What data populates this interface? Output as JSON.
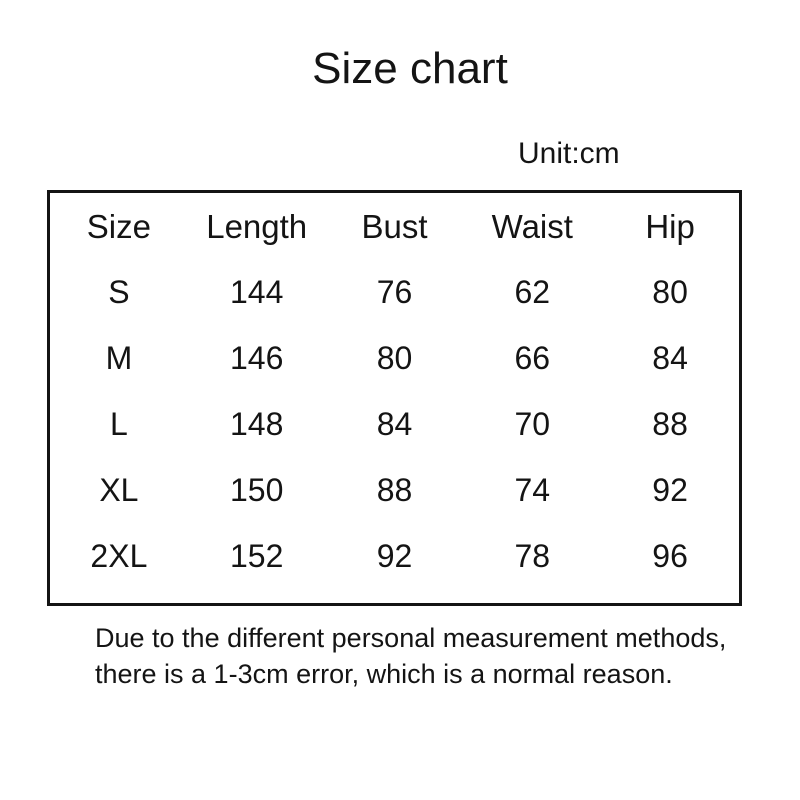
{
  "page": {
    "title": "Size chart",
    "unit_label": "Unit:cm"
  },
  "table": {
    "columns": [
      "Size",
      "Length",
      "Bust",
      "Waist",
      "Hip"
    ],
    "rows": [
      [
        "S",
        "144",
        "76",
        "62",
        "80"
      ],
      [
        "M",
        "146",
        "80",
        "66",
        "84"
      ],
      [
        "L",
        "148",
        "84",
        "70",
        "88"
      ],
      [
        "XL",
        "150",
        "88",
        "74",
        "92"
      ],
      [
        "2XL",
        "152",
        "92",
        "78",
        "96"
      ]
    ]
  },
  "footer": {
    "note_line1": "Due to the different personal measurement methods,",
    "note_line2": "there is a 1-3cm error, which is a normal reason."
  },
  "colors": {
    "text": "#141414",
    "background": "#ffffff",
    "table_border": "#141414"
  },
  "chart_data": {
    "type": "table",
    "title": "Size chart",
    "unit": "cm",
    "columns": [
      "Size",
      "Length",
      "Bust",
      "Waist",
      "Hip"
    ],
    "rows": [
      {
        "size": "S",
        "length": 144,
        "bust": 76,
        "waist": 62,
        "hip": 80
      },
      {
        "size": "M",
        "length": 146,
        "bust": 80,
        "waist": 66,
        "hip": 84
      },
      {
        "size": "L",
        "length": 148,
        "bust": 84,
        "waist": 70,
        "hip": 88
      },
      {
        "size": "XL",
        "length": 150,
        "bust": 88,
        "waist": 74,
        "hip": 92
      },
      {
        "size": "2XL",
        "length": 152,
        "bust": 92,
        "waist": 78,
        "hip": 96
      }
    ],
    "note": "Due to the different personal measurement methods, there is a 1-3cm error, which is a normal reason.",
    "layout_hints": {
      "grid": false,
      "outer_border": true,
      "text_align": "center"
    }
  }
}
